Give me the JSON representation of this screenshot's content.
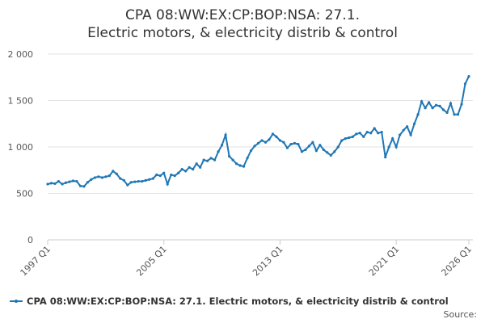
{
  "chart_data": {
    "type": "line",
    "title": "CPA 08:WW:EX:CP:BOP:NSA: 27.1. Electric motors, & electricity distrib & control",
    "categories": [
      "1997 Q1",
      null,
      null,
      null,
      null,
      null,
      null,
      null,
      null,
      null,
      null,
      null,
      null,
      null,
      null,
      null,
      null,
      null,
      null,
      null,
      null,
      null,
      null,
      null,
      null,
      null,
      null,
      null,
      null,
      null,
      null,
      null,
      "2005 Q1",
      null,
      null,
      null,
      null,
      null,
      null,
      null,
      null,
      null,
      null,
      null,
      null,
      null,
      null,
      null,
      null,
      null,
      null,
      null,
      null,
      null,
      null,
      null,
      null,
      null,
      null,
      null,
      null,
      null,
      null,
      null,
      "2013 Q1",
      null,
      null,
      null,
      null,
      null,
      null,
      null,
      null,
      null,
      null,
      null,
      null,
      null,
      null,
      null,
      null,
      null,
      null,
      null,
      null,
      null,
      null,
      null,
      null,
      null,
      null,
      null,
      null,
      null,
      null,
      null,
      "2021 Q1",
      null,
      null,
      null,
      null,
      null,
      null,
      null,
      null,
      null,
      null,
      null,
      null,
      null,
      null,
      null,
      null,
      null,
      null,
      null,
      "2026 Q1"
    ],
    "series": [
      {
        "name": "CPA 08:WW:EX:CP:BOP:NSA: 27.1. Electric motors, & electricity distrib & control",
        "color": "#1f77b4",
        "values": [
          600,
          610,
          605,
          630,
          600,
          615,
          625,
          635,
          630,
          580,
          575,
          620,
          650,
          670,
          680,
          670,
          680,
          690,
          740,
          710,
          660,
          640,
          590,
          620,
          625,
          630,
          630,
          640,
          650,
          660,
          700,
          690,
          720,
          600,
          700,
          690,
          720,
          760,
          740,
          780,
          760,
          820,
          780,
          860,
          850,
          880,
          860,
          950,
          1020,
          1130,
          900,
          860,
          820,
          800,
          790,
          880,
          960,
          1010,
          1040,
          1070,
          1050,
          1080,
          1140,
          1110,
          1070,
          1050,
          990,
          1030,
          1040,
          1030,
          950,
          970,
          1010,
          1050,
          960,
          1020,
          970,
          940,
          910,
          950,
          1000,
          1070,
          1090,
          1100,
          1110,
          1140,
          1150,
          1110,
          1160,
          1150,
          1200,
          1150,
          1160,
          890,
          1000,
          1090,
          1000,
          1130,
          1180,
          1220,
          1130,
          1250,
          1350,
          1490,
          1420,
          1480,
          1420,
          1450,
          1440,
          1400,
          1370,
          1470,
          1350,
          1350,
          1460,
          1680,
          1760
        ]
      }
    ],
    "ylim": [
      0,
      2000
    ],
    "yticks": [
      0,
      {
        "value": 500,
        "label": "500"
      },
      {
        "value": 1000,
        "label": "1 000"
      },
      {
        "value": 1500,
        "label": "1 500"
      },
      {
        "value": 2000,
        "label": "2 000"
      }
    ],
    "grid": true,
    "source": "Source:"
  }
}
